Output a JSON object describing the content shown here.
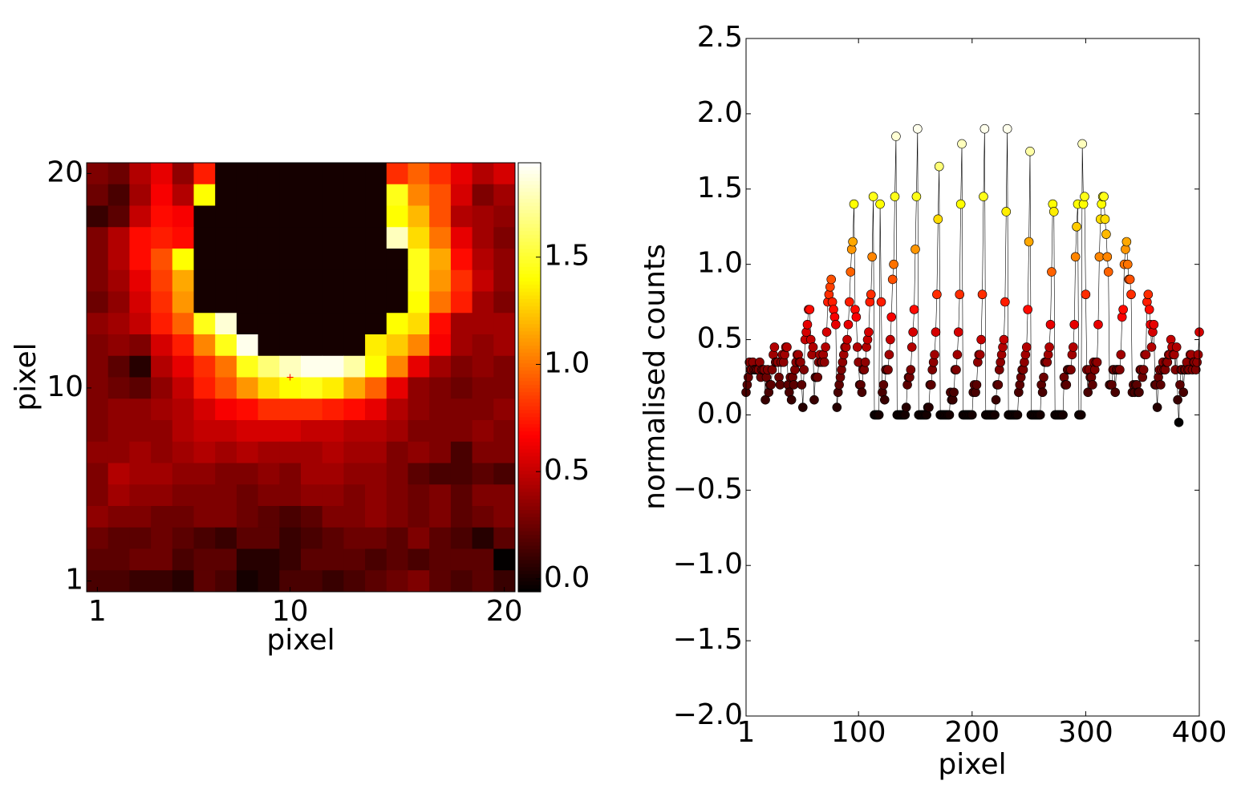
{
  "chart_data": [
    {
      "type": "heatmap",
      "xlabel": "pixel",
      "ylabel": "pixel",
      "xlim": [
        0.5,
        20.5
      ],
      "ylim": [
        0.5,
        20.5
      ],
      "xticks": [
        1,
        10,
        20
      ],
      "yticks": [
        1,
        10,
        20
      ],
      "colormap": "hot",
      "clim": [
        -0.06,
        1.94
      ],
      "colorbar_ticks": [
        {
          "value": 0,
          "label": "0.0"
        },
        0.5,
        {
          "value": 1,
          "label": "1.0"
        },
        1.5
      ],
      "marker": {
        "x": 10,
        "y": 10.5,
        "color": "#ff0000"
      },
      "z": [
        [
          0.3,
          0.25,
          0.45,
          0.6,
          0.35,
          0.75,
          0,
          0,
          0,
          0,
          0,
          0,
          0,
          0,
          0.8,
          0.95,
          0.8,
          0.6,
          0.45,
          0.55
        ],
        [
          0.25,
          0.15,
          0.4,
          0.65,
          0.45,
          1.4,
          0,
          0,
          0,
          0,
          0,
          0,
          0,
          0,
          1.45,
          1.05,
          0.9,
          0.55,
          0.3,
          0.4
        ],
        [
          0.1,
          0.2,
          0.5,
          0.7,
          0.65,
          0,
          0,
          0,
          0,
          0,
          0,
          0,
          0,
          0,
          1.4,
          1.2,
          0.9,
          0.45,
          0.4,
          0.35
        ],
        [
          0.3,
          0.45,
          0.7,
          0.75,
          0.7,
          0,
          0,
          0,
          0,
          0,
          0,
          0,
          0,
          0,
          1.8,
          1.3,
          1.0,
          0.6,
          0.4,
          0.3
        ],
        [
          0.3,
          0.45,
          0.7,
          0.9,
          1.4,
          0,
          0,
          0,
          0,
          0,
          0,
          0,
          0,
          0,
          0,
          1.45,
          1.15,
          0.7,
          0.45,
          0.35
        ],
        [
          0.3,
          0.4,
          0.6,
          0.85,
          1.15,
          0,
          0,
          0,
          0,
          0,
          0,
          0,
          0,
          0,
          0,
          1.45,
          1.1,
          0.8,
          0.5,
          0.35
        ],
        [
          0.25,
          0.35,
          0.55,
          0.8,
          1.1,
          0,
          0,
          0,
          0,
          0,
          0,
          0,
          0,
          0,
          0,
          1.4,
          1.0,
          0.75,
          0.4,
          0.3
        ],
        [
          0.35,
          0.4,
          0.5,
          0.75,
          0.95,
          1.45,
          1.85,
          0,
          0,
          0,
          0,
          0,
          0,
          0,
          1.4,
          1.3,
          0.7,
          0.4,
          0.4,
          0.4
        ],
        [
          0.3,
          0.35,
          0.3,
          0.55,
          0.75,
          1.05,
          1.45,
          1.9,
          0,
          0,
          0,
          0,
          0,
          1.35,
          1.25,
          1.05,
          0.65,
          0.4,
          0.35,
          0.4
        ],
        [
          0.3,
          0.2,
          0.05,
          0.45,
          0.6,
          0.8,
          1.0,
          1.45,
          1.65,
          1.8,
          1.9,
          1.9,
          1.75,
          1.4,
          1.05,
          0.6,
          0.4,
          0.3,
          0.35,
          0.3
        ],
        [
          0.3,
          0.25,
          0.2,
          0.35,
          0.5,
          0.75,
          0.9,
          1.1,
          1.3,
          1.4,
          1.45,
          1.35,
          1.15,
          0.95,
          0.6,
          0.35,
          0.3,
          0.25,
          0.3,
          0.3
        ],
        [
          0.3,
          0.35,
          0.35,
          0.4,
          0.45,
          0.55,
          0.65,
          0.7,
          0.8,
          0.8,
          0.8,
          0.75,
          0.7,
          0.6,
          0.45,
          0.35,
          0.3,
          0.3,
          0.3,
          0.35
        ],
        [
          0.3,
          0.35,
          0.35,
          0.35,
          0.45,
          0.5,
          0.5,
          0.55,
          0.55,
          0.55,
          0.5,
          0.5,
          0.45,
          0.45,
          0.4,
          0.3,
          0.3,
          0.3,
          0.35,
          0.3
        ],
        [
          0.35,
          0.35,
          0.4,
          0.35,
          0.4,
          0.45,
          0.4,
          0.45,
          0.4,
          0.4,
          0.4,
          0.45,
          0.4,
          0.4,
          0.3,
          0.35,
          0.3,
          0.15,
          0.3,
          0.3
        ],
        [
          0.3,
          0.45,
          0.4,
          0.4,
          0.35,
          0.35,
          0.3,
          0.3,
          0.35,
          0.3,
          0.4,
          0.4,
          0.35,
          0.35,
          0.3,
          0.2,
          0.15,
          0.15,
          0.2,
          0.15
        ],
        [
          0.3,
          0.4,
          0.35,
          0.35,
          0.3,
          0.3,
          0.3,
          0.25,
          0.3,
          0.3,
          0.35,
          0.35,
          0.3,
          0.35,
          0.3,
          0.25,
          0.3,
          0.2,
          0.3,
          0.3
        ],
        [
          0.35,
          0.3,
          0.3,
          0.25,
          0.25,
          0.3,
          0.3,
          0.25,
          0.2,
          0.15,
          0.2,
          0.3,
          0.3,
          0.35,
          0.3,
          0.25,
          0.3,
          0.2,
          0.25,
          0.3
        ],
        [
          0.25,
          0.2,
          0.2,
          0.25,
          0.2,
          0.15,
          0.1,
          0.2,
          0.2,
          0.1,
          0.15,
          0.2,
          0.25,
          0.25,
          0.2,
          0.3,
          0.2,
          0.15,
          0.05,
          0.2
        ],
        [
          0.2,
          0.2,
          0.25,
          0.25,
          0.15,
          0.2,
          0.2,
          0.05,
          0.05,
          0.1,
          0.2,
          0.2,
          0.2,
          0.15,
          0.2,
          0.15,
          0.2,
          0.2,
          0.2,
          -0.05
        ],
        [
          0.15,
          0.15,
          0.1,
          0.1,
          0.05,
          0.2,
          0.15,
          0.0,
          0.05,
          0.15,
          0.15,
          0.1,
          0.15,
          0.2,
          0.25,
          0.3,
          0.2,
          0.15,
          0.2,
          0.1
        ]
      ]
    },
    {
      "type": "line",
      "xlabel": "pixel",
      "ylabel": "normalised counts",
      "xlim": [
        1,
        400
      ],
      "xticks": [
        1,
        100,
        200,
        300,
        400
      ],
      "ylim": [
        -2,
        2.5
      ],
      "yticks": [
        {
          "value": -2,
          "label": "−2.0"
        },
        {
          "value": -1.5,
          "label": "−1.5"
        },
        {
          "value": -1,
          "label": "−1.0"
        },
        {
          "value": -0.5,
          "label": "−0.5"
        },
        {
          "value": 0,
          "label": "0.0"
        },
        0.5,
        {
          "value": 1,
          "label": "1.0"
        },
        1.5,
        {
          "value": 2,
          "label": "2.0"
        },
        2.5
      ],
      "line_color": "#000000"
    }
  ]
}
